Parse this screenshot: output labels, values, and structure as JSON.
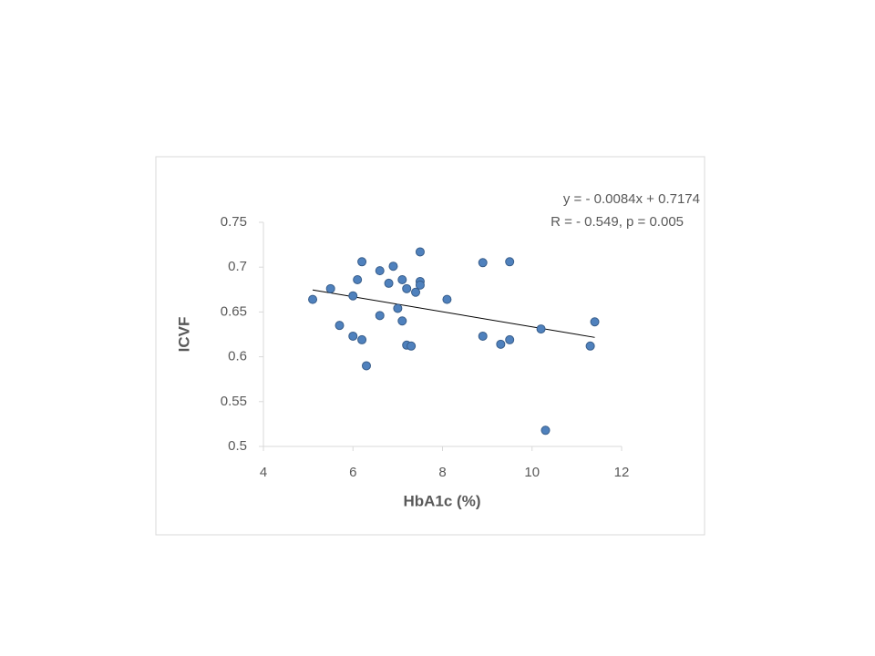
{
  "chart_data": {
    "type": "scatter",
    "x_label": "HbA1c (%)",
    "y_label": "ICVF",
    "annotations": [
      "y = - 0.0084x + 0.7174",
      "R = - 0.549, p = 0.005"
    ],
    "x": [
      5.1,
      5.5,
      5.7,
      6.0,
      6.0,
      6.1,
      6.2,
      6.2,
      6.3,
      6.6,
      6.6,
      6.8,
      6.9,
      7.0,
      7.1,
      7.1,
      7.2,
      7.2,
      7.3,
      7.4,
      7.5,
      7.5,
      7.5,
      8.1,
      8.9,
      8.9,
      9.3,
      9.5,
      9.5,
      10.2,
      10.3,
      11.3,
      11.4
    ],
    "values": [
      0.664,
      0.676,
      0.635,
      0.668,
      0.623,
      0.686,
      0.706,
      0.619,
      0.59,
      0.696,
      0.646,
      0.682,
      0.701,
      0.654,
      0.686,
      0.64,
      0.676,
      0.613,
      0.612,
      0.672,
      0.717,
      0.684,
      0.68,
      0.664,
      0.705,
      0.623,
      0.614,
      0.706,
      0.619,
      0.631,
      0.518,
      0.612,
      0.639
    ],
    "color": "#4f81bd",
    "trendline": {
      "slope": -0.0084,
      "intercept": 0.7174
    },
    "xlim": [
      4,
      12
    ],
    "xticks": [
      4,
      6,
      8,
      10,
      12
    ],
    "ylim": [
      0.5,
      0.75
    ],
    "yticks": [
      0.5,
      0.55,
      0.6,
      0.65,
      0.7,
      0.75
    ],
    "grid": false
  }
}
